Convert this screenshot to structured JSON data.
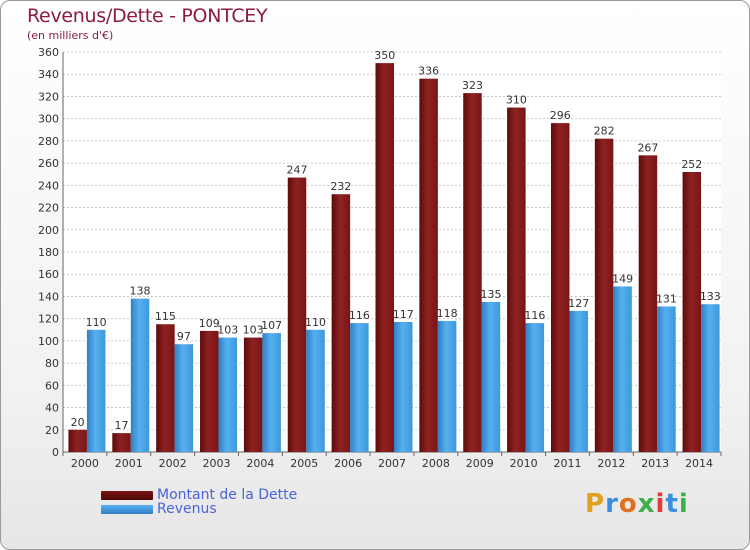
{
  "title": "Revenus/Dette - PONTCEY",
  "subtitle": "(en milliers d'€)",
  "legend": [
    {
      "label": "Montant de la Dette",
      "color": "#8b1a1a"
    },
    {
      "label": "Revenus",
      "color": "#3b9be0"
    }
  ],
  "logo": {
    "letters": [
      "P",
      "r",
      "o",
      "x",
      "i",
      "t",
      "i"
    ],
    "colors": [
      "#e0a020",
      "#3b8ee0",
      "#e07020",
      "#3bb04a",
      "#e03b3b",
      "#3b8ee0",
      "#3bb04a"
    ]
  },
  "chart_data": {
    "type": "bar",
    "categories": [
      "2000",
      "2001",
      "2002",
      "2003",
      "2004",
      "2005",
      "2006",
      "2007",
      "2008",
      "2009",
      "2010",
      "2011",
      "2012",
      "2013",
      "2014"
    ],
    "series": [
      {
        "name": "Montant de la Dette",
        "color": "#8b1a1a",
        "values": [
          20,
          17,
          115,
          109,
          103,
          247,
          232,
          350,
          336,
          323,
          310,
          296,
          282,
          267,
          252
        ]
      },
      {
        "name": "Revenus",
        "color": "#3b9be0",
        "values": [
          110,
          138,
          97,
          103,
          107,
          110,
          116,
          117,
          118,
          135,
          116,
          127,
          149,
          131,
          133
        ]
      }
    ],
    "ylim": [
      0,
      360
    ],
    "ytick_step": 20,
    "grid": true
  }
}
